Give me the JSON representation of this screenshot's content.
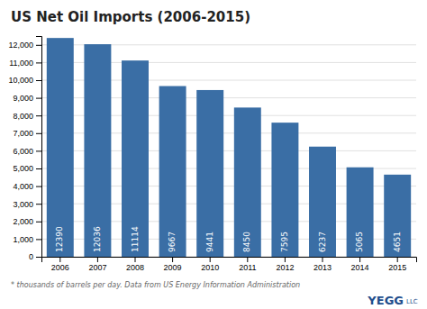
{
  "chart_data": {
    "type": "bar",
    "title": "US Net Oil Imports (2006-2015)",
    "categories": [
      "2006",
      "2007",
      "2008",
      "2009",
      "2010",
      "2011",
      "2012",
      "2013",
      "2014",
      "2015"
    ],
    "values": [
      12390,
      12036,
      11114,
      9667,
      9441,
      8450,
      7595,
      6237,
      5065,
      4651
    ],
    "color": "#3a6ea5",
    "ylim": [
      0,
      12500
    ],
    "yticks": [
      0,
      {
        "value": 1000,
        "label": "1,000"
      },
      {
        "value": 2000,
        "label": "2,000"
      },
      {
        "value": 3000,
        "label": "3,000"
      },
      {
        "value": 4000,
        "label": "4,000"
      },
      {
        "value": 5000,
        "label": "5,000"
      },
      {
        "value": 6000,
        "label": "6,000"
      },
      {
        "value": 7000,
        "label": "7,000"
      },
      {
        "value": 8000,
        "label": "8,000"
      },
      {
        "value": 9000,
        "label": "9,000"
      },
      {
        "value": 10000,
        "label": "10,000"
      },
      {
        "value": 11000,
        "label": "11,000"
      },
      {
        "value": 12000,
        "label": "12,000"
      }
    ],
    "grid": true,
    "data_labels": true,
    "annotations": [
      "* thousands of barrels per day. Data from US Energy Information Administration",
      "YEGG",
      "LLC"
    ]
  }
}
